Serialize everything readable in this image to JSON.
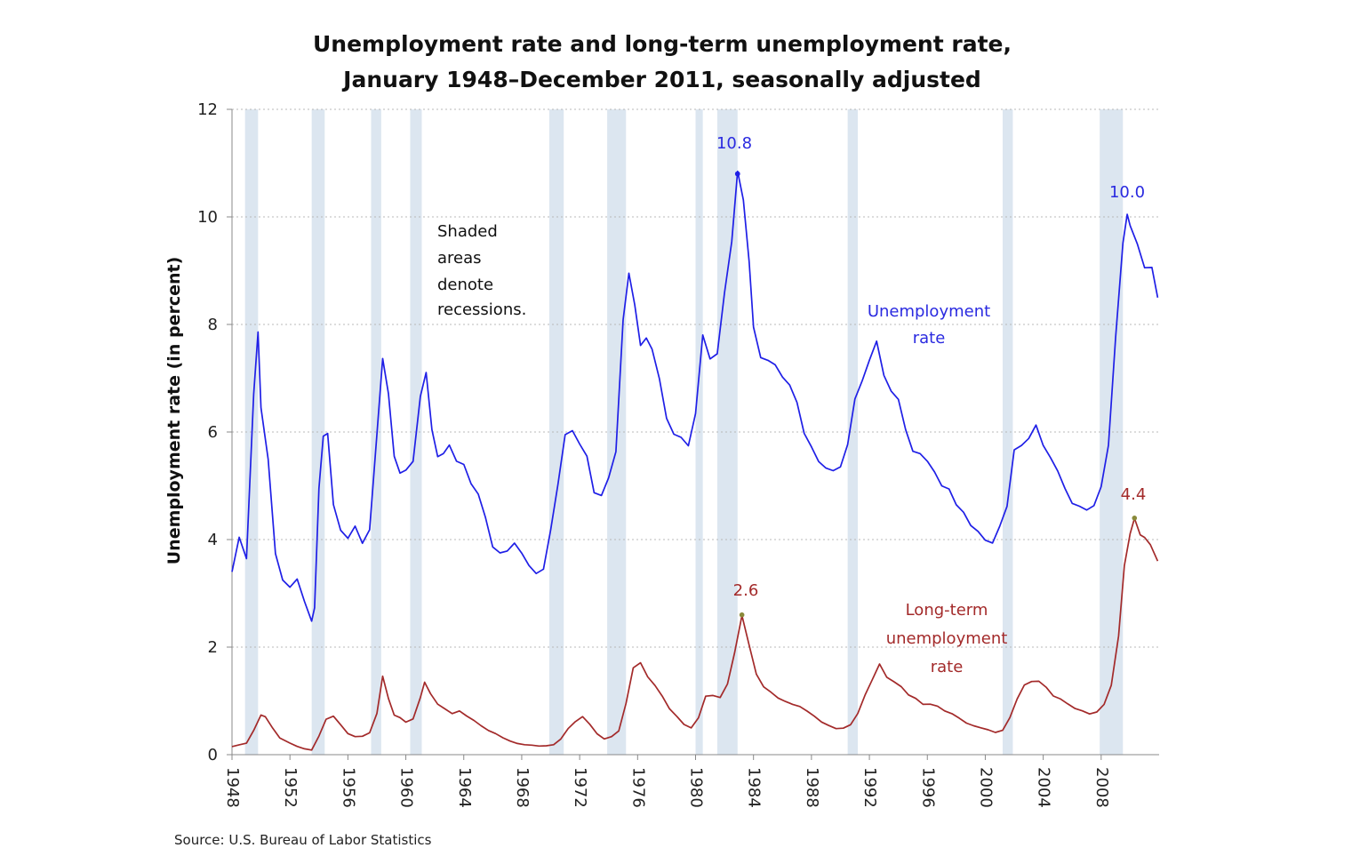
{
  "chart_data": {
    "type": "line",
    "title_line1": "Unemployment rate and long-term unemployment rate,",
    "title_line2": "January 1948–December 2011, seasonally adjusted",
    "ylabel": "Unemployment rate (in percent)",
    "source": "Source: U.S. Bureau of Labor Statistics",
    "shading_note": [
      "Shaded",
      "areas",
      "denote",
      "recessions."
    ],
    "ylim": [
      0,
      12
    ],
    "xlim": [
      1948.0,
      2012.0
    ],
    "y_ticks": [
      "0",
      "2",
      "4",
      "6",
      "8",
      "10",
      "12"
    ],
    "x_ticks": [
      "1948",
      "1952",
      "1956",
      "1960",
      "1964",
      "1968",
      "1972",
      "1976",
      "1980",
      "1984",
      "1988",
      "1992",
      "1996",
      "2000",
      "2004",
      "2008"
    ],
    "grid": "horizontal dotted",
    "recessions": [
      [
        1948.9,
        1949.8
      ],
      [
        1953.5,
        1954.4
      ],
      [
        1957.6,
        1958.3
      ],
      [
        1960.3,
        1961.1
      ],
      [
        1969.9,
        1970.9
      ],
      [
        1973.9,
        1975.2
      ],
      [
        1980.0,
        1980.5
      ],
      [
        1981.5,
        1982.9
      ],
      [
        1990.5,
        1991.2
      ],
      [
        2001.2,
        2001.9
      ],
      [
        2007.9,
        2009.5
      ]
    ],
    "series": [
      {
        "name": "Unemployment rate",
        "label_lines": [
          "Unemployment",
          "rate"
        ],
        "color": "#1f1fe6",
        "peak_label": [
          "10.8",
          "10.0"
        ],
        "x": [
          1948.0,
          1948.5,
          1949.0,
          1949.5,
          1949.8,
          1950.0,
          1950.5,
          1951.0,
          1951.5,
          1952.0,
          1952.5,
          1953.0,
          1953.5,
          1953.7,
          1954.0,
          1954.3,
          1954.6,
          1955.0,
          1955.5,
          1956.0,
          1956.5,
          1957.0,
          1957.5,
          1958.0,
          1958.4,
          1958.8,
          1959.2,
          1959.6,
          1960.0,
          1960.5,
          1961.0,
          1961.4,
          1961.8,
          1962.2,
          1962.6,
          1963.0,
          1963.5,
          1964.0,
          1964.5,
          1965.0,
          1965.5,
          1966.0,
          1966.5,
          1967.0,
          1967.5,
          1968.0,
          1968.5,
          1969.0,
          1969.5,
          1970.0,
          1970.5,
          1971.0,
          1971.5,
          1972.0,
          1972.5,
          1973.0,
          1973.5,
          1974.0,
          1974.5,
          1975.0,
          1975.4,
          1975.8,
          1976.2,
          1976.6,
          1977.0,
          1977.5,
          1978.0,
          1978.5,
          1979.0,
          1979.5,
          1980.0,
          1980.5,
          1981.0,
          1981.5,
          1982.0,
          1982.5,
          1982.9,
          1983.3,
          1983.7,
          1984.0,
          1984.5,
          1985.0,
          1985.5,
          1986.0,
          1986.5,
          1987.0,
          1987.5,
          1988.0,
          1988.5,
          1989.0,
          1989.5,
          1990.0,
          1990.5,
          1991.0,
          1991.5,
          1992.0,
          1992.5,
          1993.0,
          1993.5,
          1994.0,
          1994.5,
          1995.0,
          1995.5,
          1996.0,
          1996.5,
          1997.0,
          1997.5,
          1998.0,
          1998.5,
          1999.0,
          1999.5,
          2000.0,
          2000.5,
          2001.0,
          2001.5,
          2002.0,
          2002.5,
          2003.0,
          2003.5,
          2004.0,
          2004.5,
          2005.0,
          2005.5,
          2006.0,
          2006.5,
          2007.0,
          2007.5,
          2008.0,
          2008.5,
          2009.0,
          2009.5,
          2009.8,
          2010.0,
          2010.5,
          2011.0,
          2011.5,
          2011.9
        ],
        "values": [
          3.4,
          4.0,
          3.6,
          6.7,
          7.9,
          6.5,
          5.5,
          3.7,
          3.2,
          3.1,
          3.3,
          2.9,
          2.5,
          2.7,
          4.9,
          5.9,
          6.0,
          4.7,
          4.2,
          4.0,
          4.2,
          3.9,
          4.2,
          6.0,
          7.4,
          6.7,
          5.5,
          5.2,
          5.3,
          5.5,
          6.7,
          7.1,
          6.0,
          5.5,
          5.6,
          5.8,
          5.5,
          5.4,
          5.0,
          4.8,
          4.4,
          3.9,
          3.8,
          3.8,
          3.9,
          3.7,
          3.5,
          3.4,
          3.5,
          4.2,
          5.0,
          5.9,
          6.0,
          5.8,
          5.6,
          4.9,
          4.8,
          5.1,
          5.6,
          8.1,
          9.0,
          8.4,
          7.6,
          7.7,
          7.5,
          7.0,
          6.3,
          6.0,
          5.9,
          5.7,
          6.3,
          7.8,
          7.4,
          7.5,
          8.6,
          9.5,
          10.8,
          10.3,
          9.2,
          8.0,
          7.4,
          7.3,
          7.2,
          7.0,
          6.9,
          6.6,
          6.0,
          5.7,
          5.4,
          5.3,
          5.3,
          5.4,
          5.8,
          6.6,
          6.9,
          7.3,
          7.7,
          7.1,
          6.8,
          6.6,
          6.0,
          5.6,
          5.6,
          5.5,
          5.3,
          5.0,
          4.9,
          4.6,
          4.5,
          4.3,
          4.2,
          4.0,
          3.9,
          4.2,
          4.6,
          5.7,
          5.8,
          5.9,
          6.1,
          5.7,
          5.5,
          5.3,
          5.0,
          4.7,
          4.6,
          4.5,
          4.6,
          5.0,
          5.8,
          7.8,
          9.5,
          10.0,
          9.8,
          9.5,
          9.1,
          9.1,
          8.5
        ]
      },
      {
        "name": "Long-term unemployment rate",
        "label_lines": [
          "Long-term",
          "unemployment",
          "rate"
        ],
        "color": "#a32a2a",
        "peak_label": [
          "2.6",
          "4.4"
        ],
        "x": [
          1948.0,
          1948.5,
          1949.0,
          1949.5,
          1950.0,
          1950.3,
          1950.8,
          1951.3,
          1952.0,
          1952.5,
          1953.0,
          1953.5,
          1954.0,
          1954.5,
          1955.0,
          1955.5,
          1956.0,
          1956.5,
          1957.0,
          1957.5,
          1958.0,
          1958.4,
          1958.8,
          1959.2,
          1959.6,
          1960.0,
          1960.5,
          1961.0,
          1961.3,
          1961.7,
          1962.2,
          1962.7,
          1963.2,
          1963.7,
          1964.2,
          1964.7,
          1965.2,
          1965.7,
          1966.2,
          1966.7,
          1967.2,
          1967.7,
          1968.2,
          1968.7,
          1969.2,
          1969.7,
          1970.2,
          1970.7,
          1971.2,
          1971.7,
          1972.2,
          1972.7,
          1973.2,
          1973.7,
          1974.2,
          1974.7,
          1975.2,
          1975.7,
          1976.2,
          1976.7,
          1977.2,
          1977.7,
          1978.2,
          1978.7,
          1979.2,
          1979.7,
          1980.2,
          1980.7,
          1981.2,
          1981.7,
          1982.2,
          1982.7,
          1983.2,
          1983.7,
          1984.2,
          1984.7,
          1985.2,
          1985.7,
          1986.2,
          1986.7,
          1987.2,
          1987.7,
          1988.2,
          1988.7,
          1989.2,
          1989.7,
          1990.2,
          1990.7,
          1991.2,
          1991.7,
          1992.2,
          1992.7,
          1993.2,
          1993.7,
          1994.2,
          1994.7,
          1995.2,
          1995.7,
          1996.2,
          1996.7,
          1997.2,
          1997.7,
          1998.2,
          1998.7,
          1999.2,
          1999.7,
          2000.2,
          2000.7,
          2001.2,
          2001.7,
          2002.2,
          2002.7,
          2003.2,
          2003.7,
          2004.2,
          2004.7,
          2005.2,
          2005.7,
          2006.2,
          2006.7,
          2007.2,
          2007.7,
          2008.2,
          2008.7,
          2009.2,
          2009.6,
          2010.0,
          2010.3,
          2010.7,
          2011.0,
          2011.4,
          2011.9
        ],
        "values": [
          0.15,
          0.17,
          0.2,
          0.45,
          0.75,
          0.72,
          0.5,
          0.3,
          0.2,
          0.15,
          0.12,
          0.1,
          0.35,
          0.65,
          0.7,
          0.55,
          0.4,
          0.35,
          0.35,
          0.4,
          0.75,
          1.45,
          1.05,
          0.75,
          0.7,
          0.6,
          0.65,
          1.05,
          1.35,
          1.15,
          0.95,
          0.85,
          0.75,
          0.8,
          0.72,
          0.65,
          0.55,
          0.45,
          0.38,
          0.3,
          0.25,
          0.22,
          0.2,
          0.18,
          0.15,
          0.15,
          0.18,
          0.3,
          0.5,
          0.62,
          0.7,
          0.55,
          0.38,
          0.3,
          0.35,
          0.45,
          0.95,
          1.6,
          1.7,
          1.45,
          1.3,
          1.1,
          0.85,
          0.7,
          0.55,
          0.5,
          0.7,
          1.1,
          1.1,
          1.05,
          1.3,
          1.9,
          2.6,
          2.05,
          1.5,
          1.25,
          1.15,
          1.05,
          1.0,
          0.95,
          0.9,
          0.8,
          0.7,
          0.6,
          0.55,
          0.5,
          0.5,
          0.55,
          0.75,
          1.1,
          1.4,
          1.7,
          1.45,
          1.35,
          1.25,
          1.1,
          1.05,
          0.95,
          0.95,
          0.9,
          0.8,
          0.75,
          0.68,
          0.6,
          0.55,
          0.5,
          0.45,
          0.4,
          0.45,
          0.7,
          1.05,
          1.3,
          1.35,
          1.35,
          1.25,
          1.1,
          1.05,
          0.95,
          0.85,
          0.8,
          0.75,
          0.8,
          0.95,
          1.3,
          2.2,
          3.5,
          4.1,
          4.4,
          4.1,
          4.05,
          3.9,
          3.6
        ]
      }
    ]
  }
}
